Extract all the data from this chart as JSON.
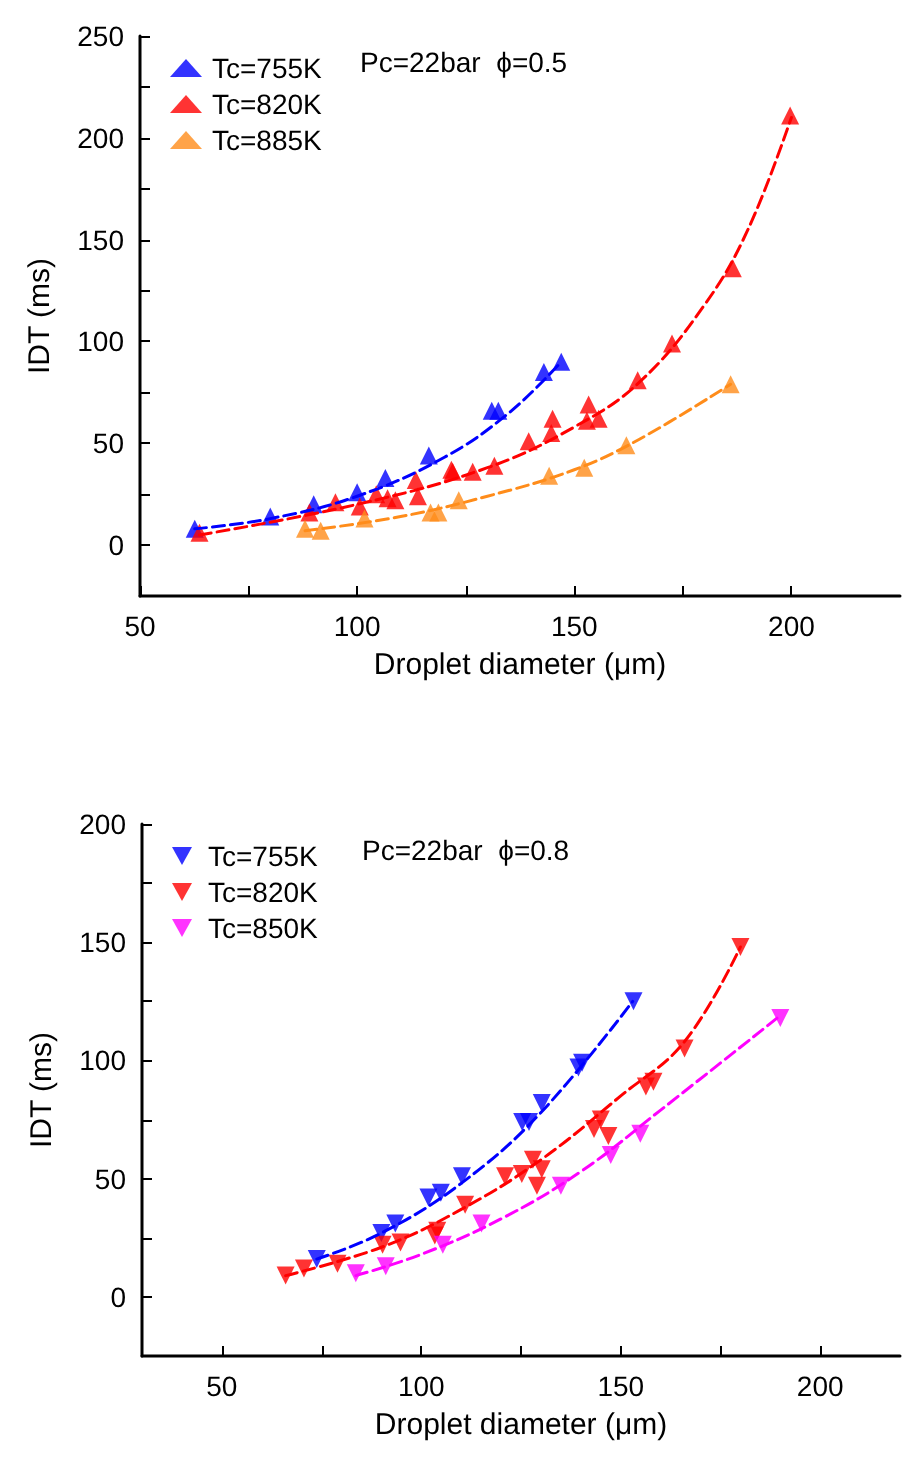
{
  "chart_data": [
    {
      "type": "scatter",
      "xlabel": "Droplet diameter (μm)",
      "ylabel": "IDT (ms)",
      "xlim": [
        50,
        225
      ],
      "xticks": [
        50,
        100,
        150,
        200
      ],
      "ylim": [
        -25,
        250
      ],
      "yticks": [
        0,
        50,
        100,
        150,
        200,
        250
      ],
      "grid": false,
      "legend": "top left",
      "marker": "triangle",
      "annotations": [
        "Pc=22bar  ϕ=0.5"
      ],
      "series": [
        {
          "name": "Tc=755K",
          "color": "#0000ff",
          "x": [
            62.6,
            80,
            90,
            100,
            106.5,
            116.5,
            131,
            132.5,
            143,
            147
          ],
          "values": [
            8,
            14,
            20,
            26,
            33,
            44,
            66,
            66,
            85,
            90
          ]
        },
        {
          "name": "Tc=820K",
          "color": "#ff0000",
          "x": [
            63.7,
            89,
            95,
            100.6,
            104.4,
            107,
            108.8,
            113.5,
            114,
            121.7,
            122,
            126.6,
            131.6,
            139.5,
            144.7,
            145,
            152.9,
            153.3,
            155.6,
            164.6,
            172.5,
            186.5,
            199.7
          ],
          "values": [
            6,
            16,
            21,
            19,
            25,
            23,
            22,
            32,
            24,
            37,
            36,
            36,
            39,
            51,
            55,
            62,
            61,
            69,
            62,
            81,
            99,
            136,
            211
          ]
        },
        {
          "name": "Tc=885K",
          "color": "#ff8c1a",
          "x": [
            88,
            91.6,
            101.7,
            116.9,
            118.7,
            123.4,
            144.2,
            152.3,
            162,
            186
          ],
          "values": [
            8,
            7,
            13,
            16,
            16,
            22,
            34,
            38,
            49,
            79
          ]
        },
        {
          "type": "line",
          "line_style": "dashed",
          "marker": "none",
          "color": "#0000ff",
          "x": [
            62.6,
            80,
            100,
            120,
            135,
            147
          ],
          "values": [
            8,
            13,
            24,
            43,
            65,
            90
          ]
        },
        {
          "type": "line",
          "line_style": "dashed",
          "marker": "none",
          "color": "#ff0000",
          "x": [
            63.7,
            100,
            130,
            150,
            165,
            180,
            190,
            200
          ],
          "values": [
            5,
            20,
            38,
            58,
            80,
            118,
            155,
            210
          ]
        },
        {
          "type": "line",
          "line_style": "dashed",
          "marker": "none",
          "color": "#ff8c1a",
          "x": [
            88,
            110,
            130,
            150,
            165,
            186
          ],
          "values": [
            7,
            14,
            24,
            37,
            52,
            79
          ]
        }
      ]
    },
    {
      "type": "scatter",
      "xlabel": "Droplet diameter (μm)",
      "ylabel": "IDT (ms)",
      "xlim": [
        30,
        220
      ],
      "xticks": [
        50,
        100,
        150,
        200
      ],
      "ylim": [
        -25,
        200
      ],
      "yticks": [
        0,
        50,
        100,
        150,
        200
      ],
      "grid": false,
      "legend": "top left",
      "marker": "triangle-down",
      "annotations": [
        "Pc=22bar  ϕ=0.8"
      ],
      "series": [
        {
          "name": "Tc=755K",
          "color": "#0000ff",
          "x": [
            73.8,
            90,
            93.5,
            101.8,
            104.9,
            110.2,
            125.3,
            127,
            130.2,
            139.4,
            140.3,
            153.2
          ],
          "values": [
            16,
            27,
            31,
            42,
            44,
            51,
            74,
            74,
            82,
            97,
            99,
            125
          ]
        },
        {
          "name": "Tc=820K",
          "color": "#ff0000",
          "x": [
            66,
            70.6,
            79,
            90.3,
            94.8,
            103.4,
            104,
            111,
            121,
            125.2,
            128,
            129,
            130.2,
            143.3,
            145,
            146.9,
            156.3,
            158.2,
            166,
            180
          ],
          "values": [
            9,
            12,
            14,
            22,
            23,
            26,
            28,
            39,
            51,
            52,
            58,
            47,
            54,
            71,
            75,
            68,
            89,
            91,
            105,
            148
          ]
        },
        {
          "name": "Tc=850K",
          "color": "#ff00ff",
          "x": [
            83.6,
            91.1,
            105.4,
            115.1,
            135,
            147.5,
            154.9,
            190
          ],
          "values": [
            10,
            13,
            22,
            31,
            47,
            60,
            69,
            118
          ]
        },
        {
          "type": "line",
          "line_style": "dashed",
          "marker": "none",
          "color": "#0000ff",
          "x": [
            73.8,
            90,
            110,
            130,
            153
          ],
          "values": [
            16,
            27,
            48,
            78,
            125
          ]
        },
        {
          "type": "line",
          "line_style": "dashed",
          "marker": "none",
          "color": "#ff0000",
          "x": [
            66,
            90,
            110,
            130,
            150,
            166,
            180
          ],
          "values": [
            9,
            21,
            37,
            58,
            85,
            108,
            148
          ]
        },
        {
          "type": "line",
          "line_style": "dashed",
          "marker": "none",
          "color": "#ff00ff",
          "x": [
            83.6,
            100,
            120,
            140,
            160,
            190
          ],
          "values": [
            9,
            18,
            33,
            53,
            79,
            119
          ]
        }
      ]
    }
  ]
}
